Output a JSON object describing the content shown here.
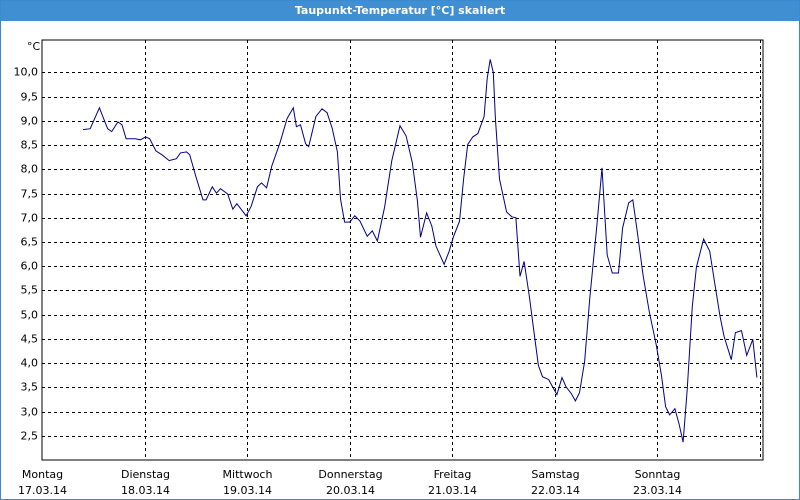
{
  "chart_data": {
    "type": "line",
    "title": "Taupunkt-Temperatur [°C] skaliert",
    "y_unit": "°C",
    "color": "#00008b",
    "grid": true,
    "xlim": [
      0,
      7
    ],
    "ylim": [
      2.0,
      10.67
    ],
    "xticks": [
      {
        "value": 0,
        "label": [
          "Montag",
          "17.03.14"
        ]
      },
      {
        "value": 1,
        "label": [
          "Dienstag",
          "18.03.14"
        ]
      },
      {
        "value": 2,
        "label": [
          "Mittwoch",
          "19.03.14"
        ]
      },
      {
        "value": 3,
        "label": [
          "Donnerstag",
          "20.03.14"
        ]
      },
      {
        "value": 4,
        "label": [
          "Freitag",
          "21.03.14"
        ]
      },
      {
        "value": 5,
        "label": [
          "Samstag",
          "22.03.14"
        ]
      },
      {
        "value": 6,
        "label": [
          "Sonntag",
          "23.03.14"
        ]
      }
    ],
    "yticks": [
      {
        "value": 2.5,
        "label": "2,5"
      },
      {
        "value": 3,
        "label": "3,0"
      },
      {
        "value": 3.5,
        "label": "3,5"
      },
      {
        "value": 4,
        "label": "4,0"
      },
      {
        "value": 4.5,
        "label": "4,5"
      },
      {
        "value": 5,
        "label": "5,0"
      },
      {
        "value": 5.5,
        "label": "5,5"
      },
      {
        "value": 6,
        "label": "6,0"
      },
      {
        "value": 6.5,
        "label": "6,5"
      },
      {
        "value": 7,
        "label": "7,0"
      },
      {
        "value": 7.5,
        "label": "7,5"
      },
      {
        "value": 8,
        "label": "8,0"
      },
      {
        "value": 8.5,
        "label": "8,5"
      },
      {
        "value": 9,
        "label": "9,0"
      },
      {
        "value": 9.5,
        "label": "9,5"
      },
      {
        "value": 10,
        "label": "10,0"
      }
    ],
    "x": [
      0.4,
      0.47,
      0.56,
      0.64,
      0.68,
      0.74,
      0.78,
      0.82,
      0.91,
      0.96,
      1.01,
      1.05,
      1.11,
      1.17,
      1.24,
      1.31,
      1.35,
      1.41,
      1.44,
      1.5,
      1.57,
      1.6,
      1.66,
      1.7,
      1.74,
      1.81,
      1.86,
      1.9,
      1.99,
      2.04,
      2.1,
      2.14,
      2.19,
      2.24,
      2.32,
      2.39,
      2.45,
      2.48,
      2.52,
      2.57,
      2.6,
      2.67,
      2.73,
      2.78,
      2.83,
      2.88,
      2.91,
      2.95,
      3.0,
      3.05,
      3.1,
      3.17,
      3.22,
      3.27,
      3.34,
      3.41,
      3.49,
      3.55,
      3.61,
      3.66,
      3.69,
      3.75,
      3.8,
      3.84,
      3.92,
      3.97,
      4.01,
      4.07,
      4.11,
      4.15,
      4.2,
      4.25,
      4.31,
      4.34,
      4.37,
      4.4,
      4.42,
      4.46,
      4.53,
      4.58,
      4.62,
      4.66,
      4.7,
      4.75,
      4.8,
      4.84,
      4.88,
      4.94,
      4.97,
      5.02,
      5.07,
      5.11,
      5.16,
      5.2,
      5.24,
      5.29,
      5.34,
      5.41,
      5.46,
      5.51,
      5.56,
      5.62,
      5.66,
      5.72,
      5.76,
      5.8,
      5.86,
      5.92,
      5.99,
      6.04,
      6.08,
      6.12,
      6.17,
      6.21,
      6.25,
      6.29,
      6.34,
      6.38,
      6.45,
      6.51,
      6.56,
      6.61,
      6.65,
      6.72,
      6.76,
      6.82,
      6.87,
      6.93,
      6.97
    ],
    "values": [
      8.82,
      8.84,
      9.27,
      8.84,
      8.78,
      8.98,
      8.92,
      8.63,
      8.63,
      8.61,
      8.67,
      8.63,
      8.38,
      8.3,
      8.18,
      8.22,
      8.34,
      8.36,
      8.3,
      7.85,
      7.37,
      7.37,
      7.64,
      7.51,
      7.6,
      7.49,
      7.18,
      7.29,
      7.04,
      7.24,
      7.64,
      7.72,
      7.62,
      8.07,
      8.55,
      9.05,
      9.27,
      8.88,
      8.92,
      8.53,
      8.47,
      9.09,
      9.25,
      9.17,
      8.84,
      8.36,
      7.39,
      6.91,
      6.91,
      7.04,
      6.93,
      6.62,
      6.73,
      6.52,
      7.22,
      8.18,
      8.9,
      8.69,
      8.14,
      7.35,
      6.6,
      7.1,
      6.83,
      6.42,
      6.04,
      6.31,
      6.6,
      6.93,
      7.8,
      8.51,
      8.67,
      8.74,
      9.09,
      9.88,
      10.27,
      10.0,
      9.05,
      7.8,
      7.12,
      7.02,
      7.0,
      5.79,
      6.1,
      5.4,
      4.59,
      3.95,
      3.72,
      3.66,
      3.54,
      3.35,
      3.7,
      3.51,
      3.37,
      3.22,
      3.39,
      4.03,
      5.32,
      6.85,
      8.03,
      6.23,
      5.86,
      5.86,
      6.79,
      7.31,
      7.37,
      6.77,
      5.81,
      5.07,
      4.36,
      3.74,
      3.1,
      2.93,
      3.06,
      2.75,
      2.37,
      3.45,
      5.17,
      5.98,
      6.56,
      6.31,
      5.63,
      4.97,
      4.55,
      4.07,
      4.63,
      4.67,
      4.16,
      4.49,
      3.7
    ]
  }
}
